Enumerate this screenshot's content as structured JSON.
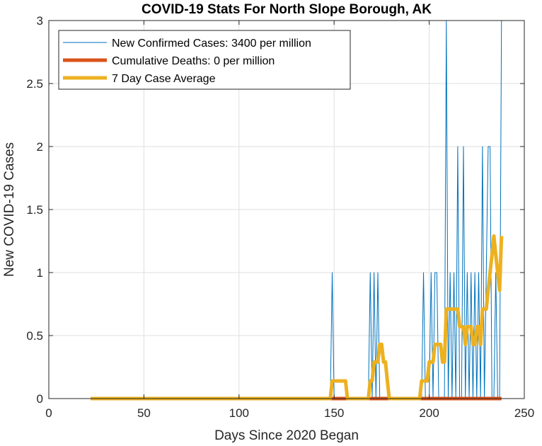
{
  "chart_data": {
    "type": "line",
    "title": "COVID-19 Stats For North Slope Borough, AK",
    "xlabel": "Days Since 2020 Began",
    "ylabel": "New COVID-19 Cases",
    "xlim": [
      0,
      250
    ],
    "ylim": [
      0,
      3
    ],
    "xticks": [
      0,
      50,
      100,
      150,
      200,
      250
    ],
    "yticks": [
      0,
      0.5,
      1,
      1.5,
      2,
      2.5,
      3
    ],
    "ytick_labels": [
      "0",
      "0.5",
      "1",
      "1.5",
      "2",
      "2.5",
      "3"
    ],
    "grid": true,
    "legend_position": "top-left",
    "series": [
      {
        "name": "New Confirmed Cases: 3400 per million",
        "color": "#0072bd",
        "x": [
          22,
          148,
          149,
          150,
          168,
          169,
          170,
          171,
          172,
          173,
          174,
          175,
          196,
          197,
          198,
          200,
          201,
          202,
          203,
          204,
          205,
          208,
          209,
          210,
          211,
          212,
          213,
          214,
          215,
          216,
          217,
          218,
          219,
          220,
          221,
          222,
          223,
          224,
          225,
          226,
          227,
          228,
          229,
          230,
          231,
          232,
          233,
          234,
          235,
          236,
          237,
          238
        ],
        "y": [
          0,
          0,
          1,
          0,
          0,
          1,
          0,
          1,
          0,
          1,
          0,
          0,
          0,
          1,
          0,
          0,
          1,
          0,
          1,
          1,
          0,
          0,
          3,
          0,
          1,
          0,
          1,
          0,
          2,
          0,
          0,
          2,
          0,
          1,
          0,
          1,
          0,
          1,
          0,
          1,
          0,
          2,
          0,
          1,
          2,
          2,
          0,
          0,
          1,
          0,
          0,
          3
        ]
      },
      {
        "name": "Cumulative Deaths: 0 per million",
        "color": "#d95319",
        "x": [
          22,
          238
        ],
        "y": [
          0,
          0
        ]
      },
      {
        "name": "7 Day Case Average",
        "color": "#edb120",
        "x": [
          22,
          148,
          149,
          150,
          151,
          152,
          153,
          154,
          155,
          156,
          157,
          168,
          169,
          170,
          171,
          172,
          173,
          174,
          175,
          176,
          177,
          178,
          179,
          180,
          181,
          182,
          195,
          196,
          197,
          198,
          199,
          200,
          201,
          202,
          203,
          204,
          205,
          206,
          207,
          208,
          209,
          210,
          211,
          212,
          213,
          214,
          215,
          216,
          217,
          218,
          219,
          220,
          221,
          222,
          223,
          224,
          225,
          226,
          227,
          228,
          229,
          230,
          231,
          232,
          233,
          234,
          235,
          236,
          237,
          238
        ],
        "y": [
          0,
          0,
          0.14,
          0.14,
          0.14,
          0.14,
          0.14,
          0.14,
          0.14,
          0.14,
          0,
          0,
          0.14,
          0.14,
          0.29,
          0.29,
          0.29,
          0.43,
          0.43,
          0.29,
          0.29,
          0.14,
          0,
          0,
          0,
          0,
          0,
          0.14,
          0.14,
          0.14,
          0.14,
          0.29,
          0.29,
          0.29,
          0.43,
          0.43,
          0.43,
          0.43,
          0.29,
          0.29,
          0.71,
          0.71,
          0.71,
          0.71,
          0.71,
          0.71,
          0.71,
          0.57,
          0.57,
          0.57,
          0.43,
          0.57,
          0.57,
          0.57,
          0.43,
          0.43,
          0.57,
          0.57,
          0.43,
          0.71,
          0.71,
          0.71,
          0.86,
          1.0,
          1.14,
          1.29,
          1.14,
          1.0,
          0.86,
          1.29
        ]
      }
    ]
  }
}
